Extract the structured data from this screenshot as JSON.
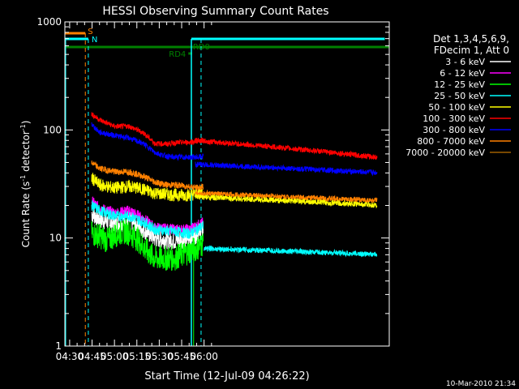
{
  "chart_data": {
    "type": "line",
    "title": "HESSI Observing Summary Count Rates",
    "xlabel": "Start Time (12-Jul-09 04:26:22)",
    "ylabel_main": "Count Rate (s",
    "ylabel_sup1": "-1",
    "ylabel_mid": " detector",
    "ylabel_sup2": "-1",
    "ylabel_end": ")",
    "y_scale": "log",
    "ylim": [
      1,
      1000
    ],
    "xlim_minutes": [
      -3.2,
      214.0
    ],
    "x_tick_labels": [
      "04:30",
      "04:45",
      "05:00",
      "05:15",
      "05:30",
      "05:45",
      "06:00"
    ],
    "x_tick_minutes": [
      0,
      15,
      30,
      45,
      60,
      75,
      90
    ],
    "y_tick_labels": [
      "1",
      "10",
      "100",
      "1000"
    ],
    "y_tick_values": [
      1,
      10,
      100,
      1000
    ],
    "legend_title_1": "Det 1,3,4,5,6,9,",
    "legend_title_2": "FDecim 1, Att 0",
    "legend_position": "right",
    "series": [
      {
        "name": "3 - 6 keV",
        "color": "#ffffff",
        "values": [
          [
            14.7,
            17
          ],
          [
            20,
            15
          ],
          [
            30,
            13.5
          ],
          [
            40,
            14.5
          ],
          [
            50,
            12
          ],
          [
            57,
            10
          ],
          [
            70,
            9.5
          ],
          [
            80,
            10
          ],
          [
            85,
            11
          ],
          [
            89.5,
            12
          ]
        ]
      },
      {
        "name": "6 - 12 keV",
        "color": "#ff00ff",
        "values": [
          [
            14.7,
            22
          ],
          [
            20,
            19
          ],
          [
            30,
            17
          ],
          [
            40,
            18
          ],
          [
            50,
            15
          ],
          [
            57,
            12.5
          ],
          [
            70,
            12
          ],
          [
            80,
            12
          ],
          [
            85,
            13
          ],
          [
            89.5,
            14
          ]
        ]
      },
      {
        "name": "12 - 25 keV",
        "color": "#00ff00",
        "values": [
          [
            14.7,
            11
          ],
          [
            20,
            10.5
          ],
          [
            25,
            9.5
          ],
          [
            32,
            11
          ],
          [
            38,
            11.5
          ],
          [
            45,
            10
          ],
          [
            52,
            7.5
          ],
          [
            57,
            6.5
          ],
          [
            70,
            6.5
          ],
          [
            80,
            7.5
          ],
          [
            85,
            8
          ],
          [
            89.5,
            9
          ]
        ]
      },
      {
        "name": "25 - 50 keV",
        "color": "#00ffff",
        "values": [
          [
            14.7,
            20
          ],
          [
            20,
            18
          ],
          [
            30,
            16
          ],
          [
            40,
            16
          ],
          [
            50,
            14
          ],
          [
            57,
            12
          ],
          [
            70,
            11.5
          ],
          [
            80,
            11
          ],
          [
            85,
            12
          ],
          [
            89.5,
            13
          ]
        ]
      },
      {
        "name": "50 - 100 keV",
        "color": "#ffff00",
        "values": [
          [
            14.7,
            36
          ],
          [
            20,
            31
          ],
          [
            30,
            29
          ],
          [
            40,
            30
          ],
          [
            50,
            28
          ],
          [
            57,
            26
          ],
          [
            70,
            25
          ],
          [
            80,
            25
          ],
          [
            86,
            26
          ],
          [
            89.5,
            27
          ]
        ]
      },
      {
        "name": "100 - 300 keV",
        "color": "#ff0000",
        "values": [
          [
            14.7,
            140
          ],
          [
            20,
            124
          ],
          [
            30,
            108
          ],
          [
            40,
            108
          ],
          [
            50,
            93
          ],
          [
            57,
            75
          ],
          [
            65,
            74
          ],
          [
            70,
            76
          ],
          [
            80,
            77
          ],
          [
            86,
            79
          ],
          [
            89.5,
            80
          ]
        ]
      },
      {
        "name": "300 - 800 keV",
        "color": "#0000ff",
        "values": [
          [
            14.7,
            113
          ],
          [
            20,
            95
          ],
          [
            30,
            89
          ],
          [
            40,
            84
          ],
          [
            50,
            74
          ],
          [
            57,
            62
          ],
          [
            65,
            57
          ],
          [
            70,
            56
          ],
          [
            80,
            56
          ],
          [
            86,
            56
          ],
          [
            89.5,
            57
          ]
        ]
      },
      {
        "name": "800 - 7000 keV",
        "color": "#ff8000",
        "values": [
          [
            14.7,
            50
          ],
          [
            20,
            44
          ],
          [
            30,
            41
          ],
          [
            40,
            41
          ],
          [
            50,
            37
          ],
          [
            57,
            33
          ],
          [
            65,
            31
          ],
          [
            70,
            31
          ],
          [
            80,
            30
          ],
          [
            86,
            29
          ],
          [
            89.5,
            30
          ]
        ]
      },
      {
        "name": "7000 - 20000 keV",
        "color": "#a06000",
        "values": []
      }
    ],
    "annotations": {
      "saa_label": "S",
      "night_label": "N",
      "rd4_label": "RD4",
      "rd0_label": "RD0"
    },
    "timestamp": "10-Mar-2010 21:34"
  }
}
